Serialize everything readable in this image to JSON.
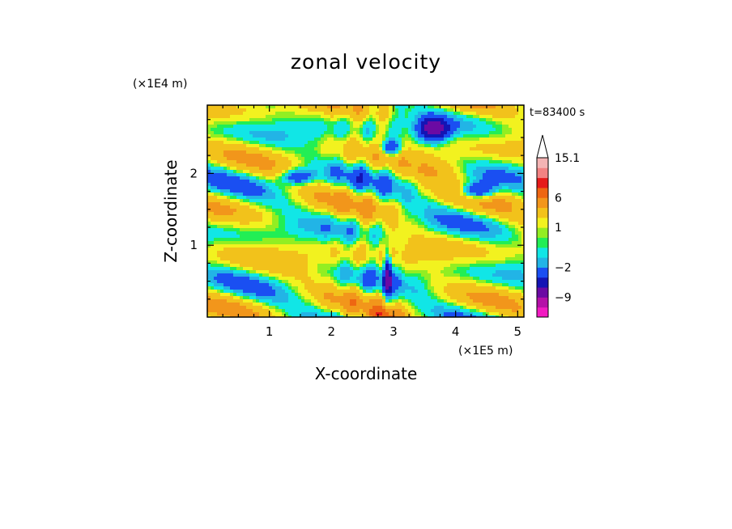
{
  "chart_data": {
    "type": "heatmap",
    "title": "zonal velocity",
    "xlabel": "X-coordinate",
    "ylabel": "Z-coordinate",
    "x_unit": "(×1E5 m)",
    "y_unit": "(×1E4 m)",
    "time_label": "t=83400 s",
    "xlim": [
      0,
      5.1
    ],
    "ylim": [
      0,
      2.95
    ],
    "x_ticks": [
      "1",
      "2",
      "3",
      "4",
      "5"
    ],
    "x_tick_values": [
      1,
      2,
      3,
      4,
      5
    ],
    "y_ticks": [
      "1",
      "2"
    ],
    "y_tick_values": [
      1,
      2
    ],
    "colorbar": {
      "levels": [
        -15,
        -12,
        -9,
        -6,
        -4,
        -2,
        -1,
        0,
        0.5,
        1,
        2,
        4,
        6,
        8,
        10,
        12,
        15.1
      ],
      "colors": [
        "#f21bc2",
        "#b510a8",
        "#6b0aa3",
        "#1414b4",
        "#1a4ff2",
        "#22b4e6",
        "#11e6e6",
        "#22ee55",
        "#92ee22",
        "#f2f21f",
        "#f2c21b",
        "#f2961b",
        "#ee6612",
        "#e51a1a",
        "#f28282",
        "#f4b4b4"
      ],
      "tick_labels": [
        "15.1",
        "6",
        "1",
        "−2",
        "−9"
      ],
      "tick_values": [
        15.1,
        6,
        1,
        -2,
        -9
      ],
      "extend": "max"
    }
  }
}
